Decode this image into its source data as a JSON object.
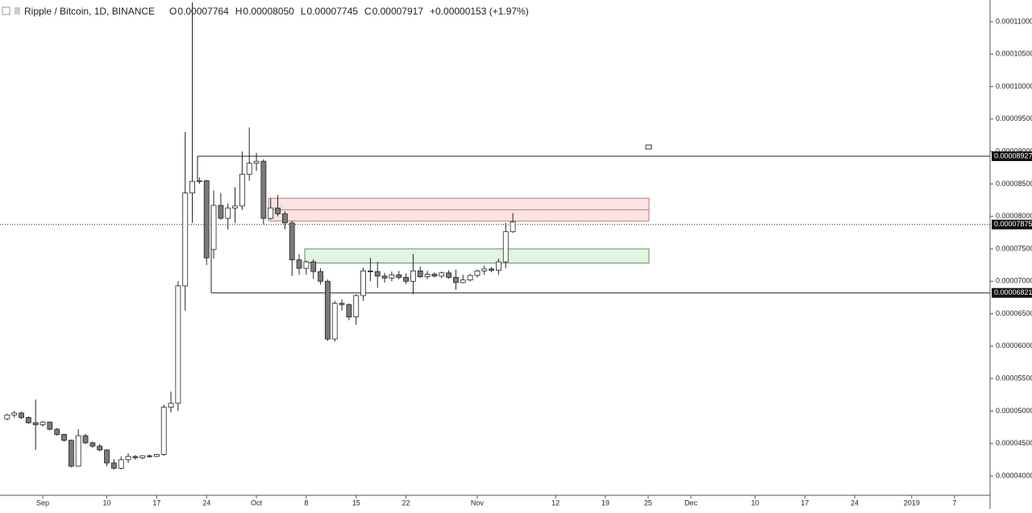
{
  "chart_data": {
    "type": "candlestick",
    "title": "Ripple / Bitcoin, 1D, BINANCE",
    "ohlc_header": [
      {
        "label": "O",
        "text": "0.00007764"
      },
      {
        "label": "H",
        "text": "0.00008050"
      },
      {
        "label": "L",
        "text": "0.00007745"
      },
      {
        "label": "C",
        "text": "0.00007917"
      }
    ],
    "change": "+0.00000153 (+1.97%)",
    "up_color": "#ffffff",
    "down_color": "#7a7a7a",
    "x": [
      "2018-08-27",
      "2018-08-28",
      "2018-08-29",
      "2018-08-30",
      "2018-08-31",
      "2018-09-01",
      "2018-09-02",
      "2018-09-03",
      "2018-09-04",
      "2018-09-05",
      "2018-09-06",
      "2018-09-07",
      "2018-09-08",
      "2018-09-09",
      "2018-09-10",
      "2018-09-11",
      "2018-09-12",
      "2018-09-13",
      "2018-09-14",
      "2018-09-15",
      "2018-09-16",
      "2018-09-17",
      "2018-09-18",
      "2018-09-19",
      "2018-09-20",
      "2018-09-21",
      "2018-09-22",
      "2018-09-23",
      "2018-09-24",
      "2018-09-25",
      "2018-09-26",
      "2018-09-27",
      "2018-09-28",
      "2018-09-29",
      "2018-09-30",
      "2018-10-01",
      "2018-10-02",
      "2018-10-03",
      "2018-10-04",
      "2018-10-05",
      "2018-10-06",
      "2018-10-07",
      "2018-10-08",
      "2018-10-09",
      "2018-10-10",
      "2018-10-11",
      "2018-10-12",
      "2018-10-13",
      "2018-10-14",
      "2018-10-15",
      "2018-10-16",
      "2018-10-17",
      "2018-10-18",
      "2018-10-19",
      "2018-10-20",
      "2018-10-21",
      "2018-10-22",
      "2018-10-23",
      "2018-10-24",
      "2018-10-25",
      "2018-10-26",
      "2018-10-27",
      "2018-10-28",
      "2018-10-29",
      "2018-10-30",
      "2018-10-31",
      "2018-11-01",
      "2018-11-02",
      "2018-11-03",
      "2018-11-04",
      "2018-11-05",
      "2018-11-06"
    ],
    "open": [
      4.88e-05,
      4.94e-05,
      4.97e-05,
      4.9e-05,
      4.82e-05,
      4.79e-05,
      4.83e-05,
      4.72e-05,
      4.64e-05,
      4.55e-05,
      4.15e-05,
      4.62e-05,
      4.51e-05,
      4.46e-05,
      4.4e-05,
      4.2e-05,
      4.12e-05,
      4.25e-05,
      4.3e-05,
      4.28e-05,
      4.31e-05,
      4.3e-05,
      4.33e-05,
      5.06e-05,
      5.12e-05,
      6.93e-05,
      8.36e-05,
      8.54e-05,
      8.55e-05,
      7.49e-05,
      8.17e-05,
      7.97e-05,
      8.13e-05,
      8.16e-05,
      8.65e-05,
      8.82e-05,
      8.85e-05,
      7.97e-05,
      8.13e-05,
      8.04e-05,
      7.9e-05,
      7.33e-05,
      7.2e-05,
      7.3e-05,
      7.15e-05,
      7e-05,
      6.11e-05,
      6.66e-05,
      6.64e-05,
      6.45e-05,
      6.78e-05,
      7.16e-05,
      7.15e-05,
      7.08e-05,
      7.05e-05,
      7.1e-05,
      7.06e-05,
      7e-05,
      7.16e-05,
      7.07e-05,
      7.11e-05,
      7.08e-05,
      7.13e-05,
      7.06e-05,
      6.98e-05,
      7.02e-05,
      7.09e-05,
      7.16e-05,
      7.19e-05,
      7.17e-05,
      7.3e-05,
      7.764e-05
    ],
    "high": [
      4.96e-05,
      5e-05,
      4.99e-05,
      4.92e-05,
      5.18e-05,
      4.85e-05,
      4.84e-05,
      4.74e-05,
      4.65e-05,
      4.56e-05,
      4.72e-05,
      4.65e-05,
      4.53e-05,
      4.49e-05,
      4.41e-05,
      4.26e-05,
      4.3e-05,
      4.35e-05,
      4.32e-05,
      4.32e-05,
      4.33e-05,
      4.34e-05,
      5.1e-05,
      5.3e-05,
      7e-05,
      9.3e-05,
      0.000113,
      8.6e-05,
      8.56e-05,
      8.4e-05,
      8.36e-05,
      8.2e-05,
      8.45e-05,
      9e-05,
      9.37e-05,
      8.98e-05,
      8.88e-05,
      8.28e-05,
      8.33e-05,
      8.08e-05,
      7.93e-05,
      7.42e-05,
      7.32e-05,
      7.34e-05,
      7.2e-05,
      7.03e-05,
      6.7e-05,
      6.72e-05,
      6.66e-05,
      6.8e-05,
      7.21e-05,
      7.36e-05,
      7.3e-05,
      7.13e-05,
      7.15e-05,
      7.16e-05,
      7.12e-05,
      7.42e-05,
      7.23e-05,
      7.16e-05,
      7.14e-05,
      7.15e-05,
      7.17e-05,
      7.18e-05,
      7.1e-05,
      7.11e-05,
      7.18e-05,
      7.24e-05,
      7.22e-05,
      7.35e-05,
      7.9e-05,
      8.05e-05
    ],
    "low": [
      4.86e-05,
      4.9e-05,
      4.88e-05,
      4.8e-05,
      4.4e-05,
      4.76e-05,
      4.7e-05,
      4.62e-05,
      4.53e-05,
      4.13e-05,
      4.14e-05,
      4.49e-05,
      4.43e-05,
      4.38e-05,
      4.15e-05,
      4.1e-05,
      4.1e-05,
      4.2e-05,
      4.25e-05,
      4.26e-05,
      4.28e-05,
      4.29e-05,
      4.31e-05,
      4.98e-05,
      5e-05,
      6.55e-05,
      7.9e-05,
      8.5e-05,
      7.25e-05,
      7.35e-05,
      7.95e-05,
      7.8e-05,
      7.9e-05,
      8.1e-05,
      8.55e-05,
      8.7e-05,
      7.88e-05,
      7.95e-05,
      8e-05,
      7.8e-05,
      7.08e-05,
      7.1e-05,
      7.1e-05,
      7.04e-05,
      6.95e-05,
      6.08e-05,
      6.07e-05,
      6.55e-05,
      6.4e-05,
      6.33e-05,
      6.7e-05,
      7e-05,
      6.9e-05,
      6.98e-05,
      7e-05,
      7.03e-05,
      6.96e-05,
      6.8e-05,
      7.05e-05,
      7.03e-05,
      7.06e-05,
      7.05e-05,
      7.04e-05,
      6.87e-05,
      6.97e-05,
      7e-05,
      7.06e-05,
      7.1e-05,
      7.14e-05,
      7.1e-05,
      7.2e-05,
      7.745e-05
    ],
    "close": [
      4.94e-05,
      4.97e-05,
      4.9e-05,
      4.82e-05,
      4.79e-05,
      4.83e-05,
      4.72e-05,
      4.64e-05,
      4.55e-05,
      4.15e-05,
      4.62e-05,
      4.51e-05,
      4.46e-05,
      4.4e-05,
      4.2e-05,
      4.12e-05,
      4.25e-05,
      4.3e-05,
      4.28e-05,
      4.31e-05,
      4.3e-05,
      4.33e-05,
      5.06e-05,
      5.12e-05,
      6.93e-05,
      8.36e-05,
      8.54e-05,
      8.55e-05,
      7.36e-05,
      8.17e-05,
      7.97e-05,
      8.13e-05,
      8.16e-05,
      8.65e-05,
      8.82e-05,
      8.85e-05,
      7.97e-05,
      8.13e-05,
      8.04e-05,
      7.9e-05,
      7.33e-05,
      7.2e-05,
      7.3e-05,
      7.15e-05,
      7e-05,
      6.11e-05,
      6.66e-05,
      6.64e-05,
      6.45e-05,
      6.78e-05,
      7.16e-05,
      7.15e-05,
      7.08e-05,
      7.05e-05,
      7.1e-05,
      7.06e-05,
      7e-05,
      7.16e-05,
      7.07e-05,
      7.11e-05,
      7.08e-05,
      7.13e-05,
      7.06e-05,
      6.98e-05,
      7.02e-05,
      7.09e-05,
      7.16e-05,
      7.19e-05,
      7.17e-05,
      7.3e-05,
      7.764e-05,
      7.917e-05
    ],
    "xlim": [
      "2018-08-26",
      "2019-01-12"
    ],
    "xticks": [
      {
        "value": "2018-09-01",
        "label": "Sep"
      },
      {
        "value": "2018-09-10",
        "label": "10"
      },
      {
        "value": "2018-09-17",
        "label": "17"
      },
      {
        "value": "2018-09-24",
        "label": "24"
      },
      {
        "value": "2018-10-01",
        "label": "Oct"
      },
      {
        "value": "2018-10-08",
        "label": "8"
      },
      {
        "value": "2018-10-15",
        "label": "15"
      },
      {
        "value": "2018-10-22",
        "label": "22"
      },
      {
        "value": "2018-11-01",
        "label": "Nov"
      },
      {
        "value": "2018-11-12",
        "label": "12"
      },
      {
        "value": "2018-11-19",
        "label": "19"
      },
      {
        "value": "2018-11-25",
        "label": "25"
      },
      {
        "value": "2018-12-01",
        "label": "Dec"
      },
      {
        "value": "2018-12-10",
        "label": "10"
      },
      {
        "value": "2018-12-17",
        "label": "17"
      },
      {
        "value": "2018-12-24",
        "label": "24"
      },
      {
        "value": "2019-01-01",
        "label": "2019"
      },
      {
        "value": "2019-01-07",
        "label": "7"
      }
    ],
    "ylim": [
      3.702e-05,
      0.00011335
    ],
    "yticks": [
      {
        "value": 4e-05,
        "label": "0.00004000"
      },
      {
        "value": 4.5e-05,
        "label": "0.00004500"
      },
      {
        "value": 5e-05,
        "label": "0.00005000"
      },
      {
        "value": 5.5e-05,
        "label": "0.00005500"
      },
      {
        "value": 6e-05,
        "label": "0.00006000"
      },
      {
        "value": 6.5e-05,
        "label": "0.00006500"
      },
      {
        "value": 7e-05,
        "label": "0.00007000"
      },
      {
        "value": 7.5e-05,
        "label": "0.00007500"
      },
      {
        "value": 8e-05,
        "label": "0.00008000"
      },
      {
        "value": 8.5e-05,
        "label": "0.00008500"
      },
      {
        "value": 9e-05,
        "label": "0.00009000"
      },
      {
        "value": 9.5e-05,
        "label": "0.00009500"
      },
      {
        "value": 0.0001,
        "label": "0.00010000"
      },
      {
        "value": 0.000105,
        "label": "0.00010500"
      },
      {
        "value": 0.00011,
        "label": "0.00011000"
      }
    ],
    "levels": [
      {
        "value": 8.927e-05,
        "label": "0.00008927"
      },
      {
        "value": 7.875e-05,
        "label": "0.00007875"
      },
      {
        "value": 6.821e-05,
        "label": "0.00006821"
      }
    ],
    "zones": [
      {
        "low": 7.93e-05,
        "high": 8.28e-05,
        "mid": 8.1e-05,
        "color": "#fbe3e3",
        "edge": "#b35c5c"
      },
      {
        "low": 7.28e-05,
        "high": 7.5e-05,
        "color": "#e2f5e2",
        "edge": "#2e7d32"
      }
    ]
  }
}
